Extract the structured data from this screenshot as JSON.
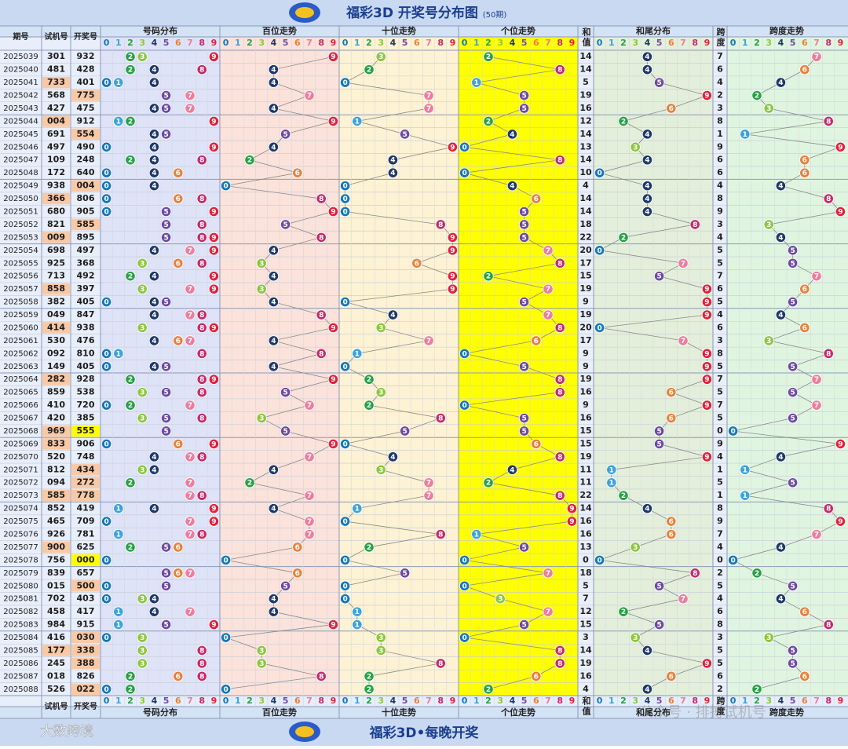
{
  "title": "福彩3D 开奖号分布图",
  "subtitle": "(50期)",
  "footer_title": "福彩3D•每晚开奖",
  "watermark_left": "大数跨境",
  "watermark_right": "公众号 · 排搏试机号",
  "headers": {
    "period": "期号",
    "trial": "试机号",
    "draw": "开奖号",
    "dist": "号码分布",
    "hundreds": "百位走势",
    "tens": "十位走势",
    "units": "个位走势",
    "sum": "和值",
    "tail": "和尾分布",
    "span": "跨度",
    "span_trend": "跨度走势"
  },
  "digits": [
    0,
    1,
    2,
    3,
    4,
    5,
    6,
    7,
    8,
    9
  ],
  "digit_colors": [
    "#1577b8",
    "#3ba3dc",
    "#27a046",
    "#8dc63f",
    "#1d3768",
    "#6d4aa0",
    "#e8813a",
    "#ee7c9c",
    "#c42a6a",
    "#e0213c"
  ],
  "rows": [
    {
      "period": "2025039",
      "trial": "301",
      "draw": "932",
      "sum": 14,
      "span": 7
    },
    {
      "period": "2025040",
      "trial": "481",
      "draw": "428",
      "sum": 14,
      "span": 6
    },
    {
      "period": "2025041",
      "trial": "733",
      "draw": "401",
      "sum": 5,
      "span": 4
    },
    {
      "period": "2025042",
      "trial": "568",
      "draw": "775",
      "sum": 19,
      "span": 2
    },
    {
      "period": "2025043",
      "trial": "427",
      "draw": "475",
      "sum": 16,
      "span": 3
    },
    {
      "period": "2025044",
      "trial": "004",
      "draw": "912",
      "sum": 12,
      "span": 8
    },
    {
      "period": "2025045",
      "trial": "691",
      "draw": "554",
      "sum": 14,
      "span": 1
    },
    {
      "period": "2025046",
      "trial": "497",
      "draw": "490",
      "sum": 13,
      "span": 9
    },
    {
      "period": "2025047",
      "trial": "109",
      "draw": "248",
      "sum": 14,
      "span": 6
    },
    {
      "period": "2025048",
      "trial": "172",
      "draw": "640",
      "sum": 10,
      "span": 6
    },
    {
      "period": "2025049",
      "trial": "938",
      "draw": "004",
      "sum": 4,
      "span": 4
    },
    {
      "period": "2025050",
      "trial": "366",
      "draw": "806",
      "sum": 14,
      "span": 8
    },
    {
      "period": "2025051",
      "trial": "680",
      "draw": "905",
      "sum": 14,
      "span": 9
    },
    {
      "period": "2025052",
      "trial": "821",
      "draw": "585",
      "sum": 18,
      "span": 3
    },
    {
      "period": "2025053",
      "trial": "009",
      "draw": "895",
      "sum": 22,
      "span": 4
    },
    {
      "period": "2025054",
      "trial": "698",
      "draw": "497",
      "sum": 20,
      "span": 5
    },
    {
      "period": "2025055",
      "trial": "925",
      "draw": "368",
      "sum": 17,
      "span": 5
    },
    {
      "period": "2025056",
      "trial": "713",
      "draw": "492",
      "sum": 15,
      "span": 7
    },
    {
      "period": "2025057",
      "trial": "858",
      "draw": "397",
      "sum": 19,
      "span": 6
    },
    {
      "period": "2025058",
      "trial": "382",
      "draw": "405",
      "sum": 9,
      "span": 5
    },
    {
      "period": "2025059",
      "trial": "049",
      "draw": "847",
      "sum": 19,
      "span": 4
    },
    {
      "period": "2025060",
      "trial": "414",
      "draw": "938",
      "sum": 20,
      "span": 6
    },
    {
      "period": "2025061",
      "trial": "530",
      "draw": "476",
      "sum": 17,
      "span": 3
    },
    {
      "period": "2025062",
      "trial": "092",
      "draw": "810",
      "sum": 9,
      "span": 8
    },
    {
      "period": "2025063",
      "trial": "149",
      "draw": "405",
      "sum": 9,
      "span": 5
    },
    {
      "period": "2025064",
      "trial": "282",
      "draw": "928",
      "sum": 19,
      "span": 7
    },
    {
      "period": "2025065",
      "trial": "859",
      "draw": "538",
      "sum": 16,
      "span": 5
    },
    {
      "period": "2025066",
      "trial": "410",
      "draw": "720",
      "sum": 9,
      "span": 7
    },
    {
      "period": "2025067",
      "trial": "420",
      "draw": "385",
      "sum": 16,
      "span": 5
    },
    {
      "period": "2025068",
      "trial": "969",
      "draw": "555",
      "sum": 15,
      "span": 0
    },
    {
      "period": "2025069",
      "trial": "833",
      "draw": "906",
      "sum": 15,
      "span": 9
    },
    {
      "period": "2025070",
      "trial": "520",
      "draw": "748",
      "sum": 19,
      "span": 4
    },
    {
      "period": "2025071",
      "trial": "812",
      "draw": "434",
      "sum": 11,
      "span": 1
    },
    {
      "period": "2025072",
      "trial": "094",
      "draw": "272",
      "sum": 11,
      "span": 5
    },
    {
      "period": "2025073",
      "trial": "585",
      "draw": "778",
      "sum": 22,
      "span": 1
    },
    {
      "period": "2025074",
      "trial": "852",
      "draw": "419",
      "sum": 14,
      "span": 8
    },
    {
      "period": "2025075",
      "trial": "465",
      "draw": "709",
      "sum": 16,
      "span": 9
    },
    {
      "period": "2025076",
      "trial": "926",
      "draw": "781",
      "sum": 16,
      "span": 7
    },
    {
      "period": "2025077",
      "trial": "900",
      "draw": "625",
      "sum": 13,
      "span": 4
    },
    {
      "period": "2025078",
      "trial": "756",
      "draw": "000",
      "sum": 0,
      "span": 0
    },
    {
      "period": "2025079",
      "trial": "839",
      "draw": "657",
      "sum": 18,
      "span": 2
    },
    {
      "period": "2025080",
      "trial": "015",
      "draw": "500",
      "sum": 5,
      "span": 5
    },
    {
      "period": "2025081",
      "trial": "702",
      "draw": "403",
      "sum": 7,
      "span": 4
    },
    {
      "period": "2025082",
      "trial": "458",
      "draw": "417",
      "sum": 12,
      "span": 6
    },
    {
      "period": "2025083",
      "trial": "984",
      "draw": "915",
      "sum": 15,
      "span": 8
    },
    {
      "period": "2025084",
      "trial": "416",
      "draw": "030",
      "sum": 3,
      "span": 3
    },
    {
      "period": "2025085",
      "trial": "177",
      "draw": "338",
      "sum": 14,
      "span": 5
    },
    {
      "period": "2025086",
      "trial": "245",
      "draw": "388",
      "sum": 19,
      "span": 5
    },
    {
      "period": "2025087",
      "trial": "018",
      "draw": "826",
      "sum": 16,
      "span": 6
    },
    {
      "period": "2025088",
      "trial": "526",
      "draw": "022",
      "sum": 4,
      "span": 2
    }
  ]
}
